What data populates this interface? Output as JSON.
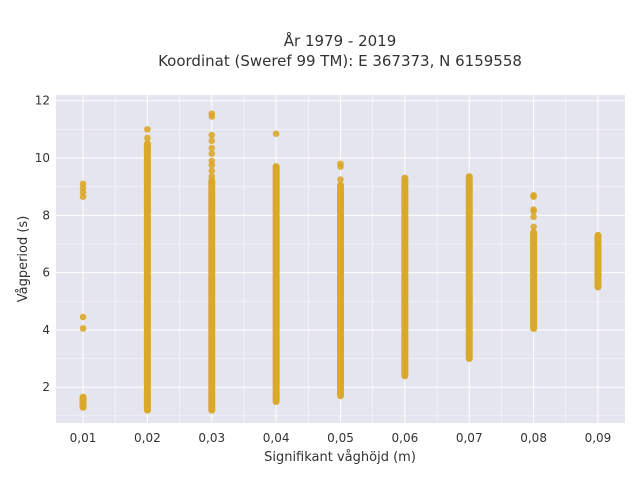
{
  "chart_data": {
    "type": "scatter",
    "title": [
      "År 1979 - 2019",
      "Koordinat (Sweref 99 TM): E 367373, N 6159558"
    ],
    "xlabel": "Signifikant våghöjd (m)",
    "ylabel": "Vågperiod (s)",
    "x_ticks": [
      "0,01",
      "0,02",
      "0,03",
      "0,04",
      "0,05",
      "0,06",
      "0,07",
      "0,08",
      "0,09"
    ],
    "y_ticks": [
      "2",
      "4",
      "6",
      "8",
      "10",
      "12"
    ],
    "xlim": [
      0.0058,
      0.0942
    ],
    "ylim": [
      0.75,
      12.2
    ],
    "grid": true,
    "legend": "none",
    "marker_color": "#DAA520",
    "plot_background": "#E5E5EF",
    "series": [
      {
        "ranges": [
          {
            "x": 0.01,
            "y_min": 1.3,
            "y_max": 1.65
          },
          {
            "x": 0.02,
            "y_min": 1.2,
            "y_max": 10.5
          },
          {
            "x": 0.03,
            "y_min": 1.2,
            "y_max": 9.2
          },
          {
            "x": 0.04,
            "y_min": 1.5,
            "y_max": 9.7
          },
          {
            "x": 0.05,
            "y_min": 1.7,
            "y_max": 9.05
          },
          {
            "x": 0.06,
            "y_min": 2.4,
            "y_max": 9.3
          },
          {
            "x": 0.07,
            "y_min": 3.0,
            "y_max": 9.35
          },
          {
            "x": 0.08,
            "y_min": 4.05,
            "y_max": 7.4
          },
          {
            "x": 0.09,
            "y_min": 5.5,
            "y_max": 7.3
          }
        ],
        "points": [
          {
            "x": 0.01,
            "y": 4.05
          },
          {
            "x": 0.01,
            "y": 4.45
          },
          {
            "x": 0.01,
            "y": 8.65
          },
          {
            "x": 0.01,
            "y": 8.8
          },
          {
            "x": 0.01,
            "y": 8.95
          },
          {
            "x": 0.01,
            "y": 9.1
          },
          {
            "x": 0.02,
            "y": 10.7
          },
          {
            "x": 0.02,
            "y": 11.0
          },
          {
            "x": 0.03,
            "y": 9.35
          },
          {
            "x": 0.03,
            "y": 9.55
          },
          {
            "x": 0.03,
            "y": 9.75
          },
          {
            "x": 0.03,
            "y": 9.9
          },
          {
            "x": 0.03,
            "y": 10.15
          },
          {
            "x": 0.03,
            "y": 10.35
          },
          {
            "x": 0.03,
            "y": 10.6
          },
          {
            "x": 0.03,
            "y": 10.8
          },
          {
            "x": 0.03,
            "y": 11.45
          },
          {
            "x": 0.03,
            "y": 11.55
          },
          {
            "x": 0.04,
            "y": 10.85
          },
          {
            "x": 0.05,
            "y": 9.25
          },
          {
            "x": 0.05,
            "y": 9.7
          },
          {
            "x": 0.05,
            "y": 9.8
          },
          {
            "x": 0.08,
            "y": 7.6
          },
          {
            "x": 0.08,
            "y": 7.95
          },
          {
            "x": 0.08,
            "y": 8.15
          },
          {
            "x": 0.08,
            "y": 8.2
          },
          {
            "x": 0.08,
            "y": 8.65
          },
          {
            "x": 0.08,
            "y": 8.7
          }
        ]
      }
    ]
  }
}
